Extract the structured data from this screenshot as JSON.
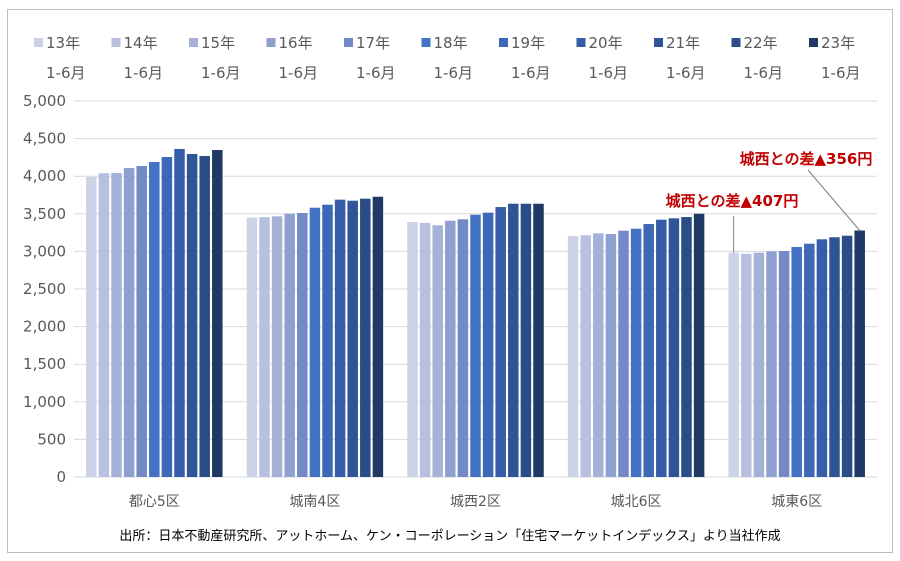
{
  "chart_data": {
    "type": "bar",
    "title": "",
    "xlabel": "",
    "ylabel": "",
    "ylim": [
      0,
      5000
    ],
    "yticks": [
      0,
      500,
      1000,
      1500,
      2000,
      2500,
      3000,
      3500,
      4000,
      4500,
      5000
    ],
    "ytick_labels": [
      "0",
      "500",
      "1,000",
      "1,500",
      "2,000",
      "2,500",
      "3,000",
      "3,500",
      "4,000",
      "4,500",
      "5,000"
    ],
    "grid": true,
    "legend_position": "top",
    "categories": [
      "都心5区",
      "城南4区",
      "城西2区",
      "城北6区",
      "城東6区"
    ],
    "series": [
      {
        "name": "13年 1-6月",
        "line1": "13年",
        "line2": "1-6月",
        "color": "#ccd3e6",
        "values": [
          3990,
          3450,
          3390,
          3205,
          2983
        ]
      },
      {
        "name": "14年 1-6月",
        "line1": "14年",
        "line2": "1-6月",
        "color": "#b7c1df",
        "values": [
          4040,
          3455,
          3378,
          3214,
          2969
        ]
      },
      {
        "name": "15年 1-6月",
        "line1": "15年",
        "line2": "1-6月",
        "color": "#a5b2d8",
        "values": [
          4043,
          3467,
          3347,
          3241,
          2983
        ]
      },
      {
        "name": "16年 1-6月",
        "line1": "16年",
        "line2": "1-6月",
        "color": "#8fa0d0",
        "values": [
          4109,
          3501,
          3408,
          3231,
          3001
        ]
      },
      {
        "name": "17年 1-6月",
        "line1": "17年",
        "line2": "1-6月",
        "color": "#7389c8",
        "values": [
          4136,
          3511,
          3427,
          3275,
          3005
        ]
      },
      {
        "name": "18年 1-6月",
        "line1": "18年",
        "line2": "1-6月",
        "color": "#4472c4",
        "values": [
          4189,
          3581,
          3488,
          3302,
          3059
        ]
      },
      {
        "name": "19年 1-6月",
        "line1": "19年",
        "line2": "1-6月",
        "color": "#3d68b8",
        "values": [
          4255,
          3621,
          3515,
          3364,
          3102
        ]
      },
      {
        "name": "20年 1-6月",
        "line1": "20年",
        "line2": "1-6月",
        "color": "#365ea8",
        "values": [
          4362,
          3688,
          3590,
          3422,
          3161
        ]
      },
      {
        "name": "21年 1-6月",
        "line1": "21年",
        "line2": "1-6月",
        "color": "#2f5597",
        "values": [
          4295,
          3674,
          3634,
          3440,
          3188
        ]
      },
      {
        "name": "22年 1-6月",
        "line1": "22年",
        "line2": "1-6月",
        "color": "#2a4c87",
        "values": [
          4269,
          3701,
          3634,
          3457,
          3209
        ]
      },
      {
        "name": "23年 1-6月",
        "line1": "23年",
        "line2": "1-6月",
        "color": "#203864",
        "values": [
          4348,
          3727,
          3634,
          3501,
          3278
        ]
      }
    ],
    "annotations": [
      {
        "text": "城西との差▲407円",
        "category": "城東6区",
        "series": "13年 1-6月",
        "color": "#c00000"
      },
      {
        "text": "城西との差▲356円",
        "category": "城東6区",
        "series": "23年 1-6月",
        "color": "#c00000"
      }
    ]
  },
  "source_note": "出所：日本不動産研究所、アットホーム、ケン・コーポレーション「住宅マーケットインデックス」より当社作成"
}
